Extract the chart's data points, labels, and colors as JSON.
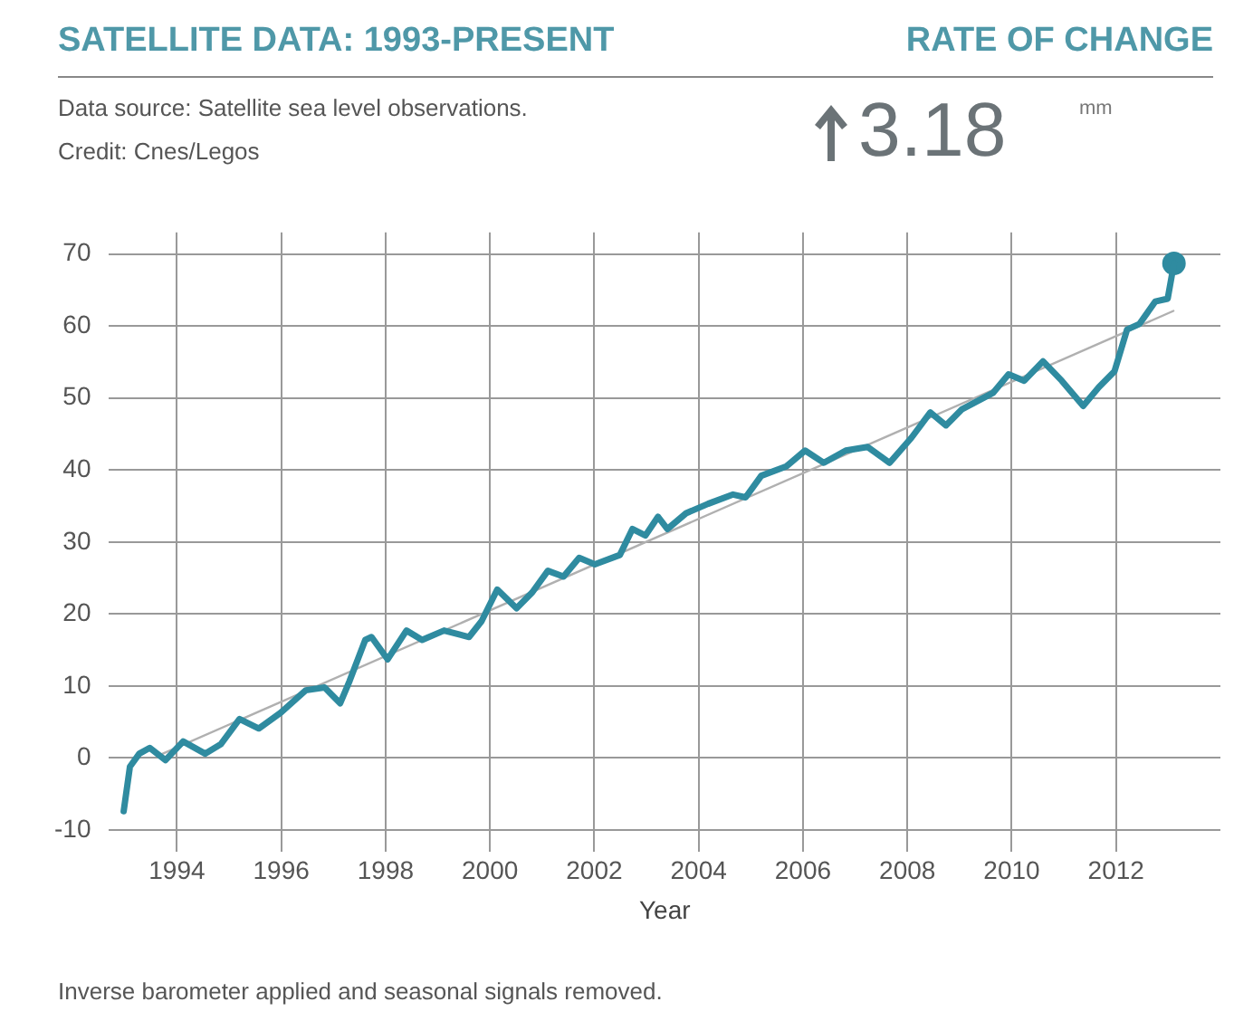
{
  "chart_data": {
    "type": "line",
    "title": "SATELLITE DATA: 1993-PRESENT",
    "xlabel": "Year",
    "annotations": [
      "RATE OF CHANGE",
      "Data source: Satellite sea level observations.",
      "Credit: Cnes/Legos",
      "3.18",
      "mm",
      "Inverse barometer applied and seasonal signals removed."
    ],
    "xlim": [
      1992.7,
      2014
    ],
    "xticks": [
      1994,
      1996,
      1998,
      2000,
      2002,
      2004,
      2006,
      2008,
      2010,
      2012
    ],
    "ylim": [
      -13,
      73
    ],
    "yticks": [
      -10,
      0,
      10,
      20,
      30,
      40,
      50,
      60,
      70
    ],
    "grid": true,
    "legend": false,
    "series": [
      {
        "color": "#2f8ba0",
        "marker": "none",
        "x": [
          1992.98,
          1993.1,
          1993.28,
          1993.48,
          1993.78,
          1994.12,
          1994.54,
          1994.84,
          1995.2,
          1995.57,
          1995.99,
          1996.47,
          1996.83,
          1997.13,
          1997.31,
          1997.61,
          1997.73,
          1998.04,
          1998.4,
          1998.7,
          1999.12,
          1999.6,
          1999.84,
          2000.14,
          2000.51,
          2000.81,
          2001.11,
          2001.41,
          2001.71,
          2002.01,
          2002.49,
          2002.73,
          2002.98,
          2003.22,
          2003.4,
          2003.76,
          2004.18,
          2004.66,
          2004.9,
          2005.2,
          2005.68,
          2006.04,
          2006.4,
          2006.82,
          2007.24,
          2007.66,
          2008.08,
          2008.44,
          2008.74,
          2009.04,
          2009.64,
          2009.94,
          2010.24,
          2010.6,
          2010.96,
          2011.37,
          2011.67,
          2011.97,
          2012.21,
          2012.45,
          2012.75,
          2012.99,
          2013.11
        ],
        "values": [
          -7.4,
          -1.2,
          0.6,
          1.4,
          -0.3,
          2.3,
          0.6,
          1.9,
          5.4,
          4.1,
          6.3,
          9.4,
          9.8,
          7.6,
          10.7,
          16.4,
          16.8,
          13.7,
          17.7,
          16.4,
          17.7,
          16.8,
          19,
          23.4,
          20.8,
          23,
          26,
          25.2,
          27.8,
          26.9,
          28.2,
          31.8,
          30.9,
          33.5,
          31.8,
          34,
          35.3,
          36.6,
          36.2,
          39.2,
          40.5,
          42.7,
          41,
          42.7,
          43.2,
          41,
          44.5,
          48,
          46.2,
          48.4,
          50.7,
          53.3,
          52.4,
          55.1,
          52.4,
          48.9,
          51.5,
          53.7,
          59.5,
          60.3,
          63.4,
          63.8,
          68.7
        ]
      },
      {
        "type": "line",
        "color": "#b0b0b0",
        "marker": "none",
        "x": [
          1993.7,
          2013.1
        ],
        "values": [
          0.5,
          62.1
        ]
      },
      {
        "type": "scatter",
        "color": "#2f8ba0",
        "marker": "circle",
        "x": [
          2013.11
        ],
        "values": [
          68.7
        ]
      }
    ]
  }
}
